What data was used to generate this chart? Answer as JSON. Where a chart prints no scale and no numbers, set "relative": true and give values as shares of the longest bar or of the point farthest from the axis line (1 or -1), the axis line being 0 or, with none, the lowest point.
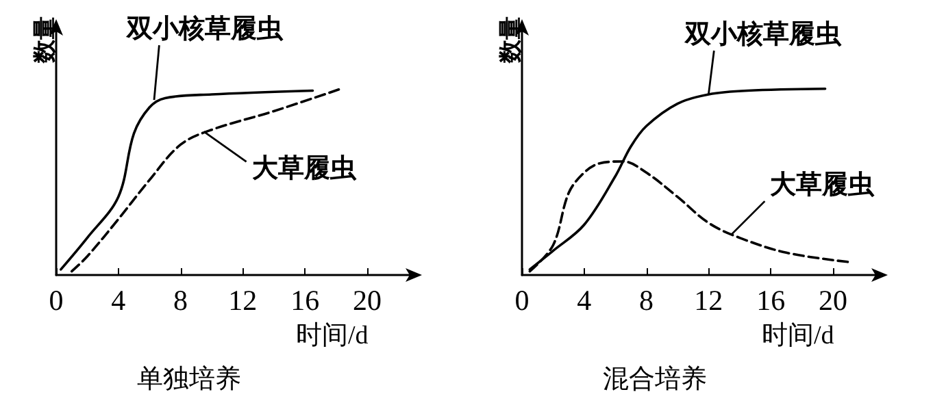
{
  "chart_data": [
    {
      "type": "line",
      "title": "单独培养",
      "xlabel": "时间/d",
      "ylabel": "数量",
      "relative": true,
      "xlim": [
        0,
        23
      ],
      "xticks": [
        0,
        4,
        8,
        12,
        16,
        20
      ],
      "grid": false,
      "marker": "none",
      "series": [
        {
          "color": "#000000",
          "line_style": "solid",
          "x": [
            0.3,
            2,
            4,
            5,
            6,
            7,
            10,
            16.5
          ],
          "values": [
            0.03,
            0.2,
            0.42,
            0.76,
            0.9,
            0.95,
            0.97,
            0.99
          ]
        },
        {
          "color": "#000000",
          "line_style": "dashed",
          "x": [
            1,
            2,
            4,
            6,
            8,
            10,
            14,
            18.3
          ],
          "values": [
            0.02,
            0.1,
            0.3,
            0.51,
            0.7,
            0.78,
            0.88,
            1
          ]
        }
      ],
      "annotations": [
        {
          "text": "双小核草履虫",
          "x": 6.3,
          "y": 0.94
        },
        {
          "text": "大草履虫",
          "x": 9.5,
          "y": 0.77
        }
      ]
    },
    {
      "type": "line",
      "title": "混合培养",
      "xlabel": "时间/d",
      "ylabel": "数量",
      "relative": true,
      "xlim": [
        0,
        23
      ],
      "xticks": [
        0,
        4,
        8,
        12,
        16,
        20
      ],
      "grid": false,
      "marker": "none",
      "series": [
        {
          "color": "#000000",
          "line_style": "solid",
          "x": [
            0.5,
            2,
            4,
            6,
            7,
            8,
            10,
            12,
            14.5,
            19.5
          ],
          "values": [
            0.03,
            0.13,
            0.27,
            0.53,
            0.69,
            0.8,
            0.92,
            0.97,
            0.99,
            1
          ]
        },
        {
          "color": "#000000",
          "line_style": "dashed",
          "x": [
            0.5,
            2,
            3,
            4,
            5,
            6.5,
            8,
            10,
            12,
            14,
            17,
            21
          ],
          "values": [
            0.02,
            0.16,
            0.44,
            0.55,
            0.6,
            0.61,
            0.55,
            0.42,
            0.28,
            0.2,
            0.12,
            0.07
          ]
        }
      ],
      "annotations": [
        {
          "text": "双小核草履虫",
          "x": 12,
          "y": 0.97
        },
        {
          "text": "大草履虫",
          "x": 13.5,
          "y": 0.22
        }
      ]
    }
  ]
}
